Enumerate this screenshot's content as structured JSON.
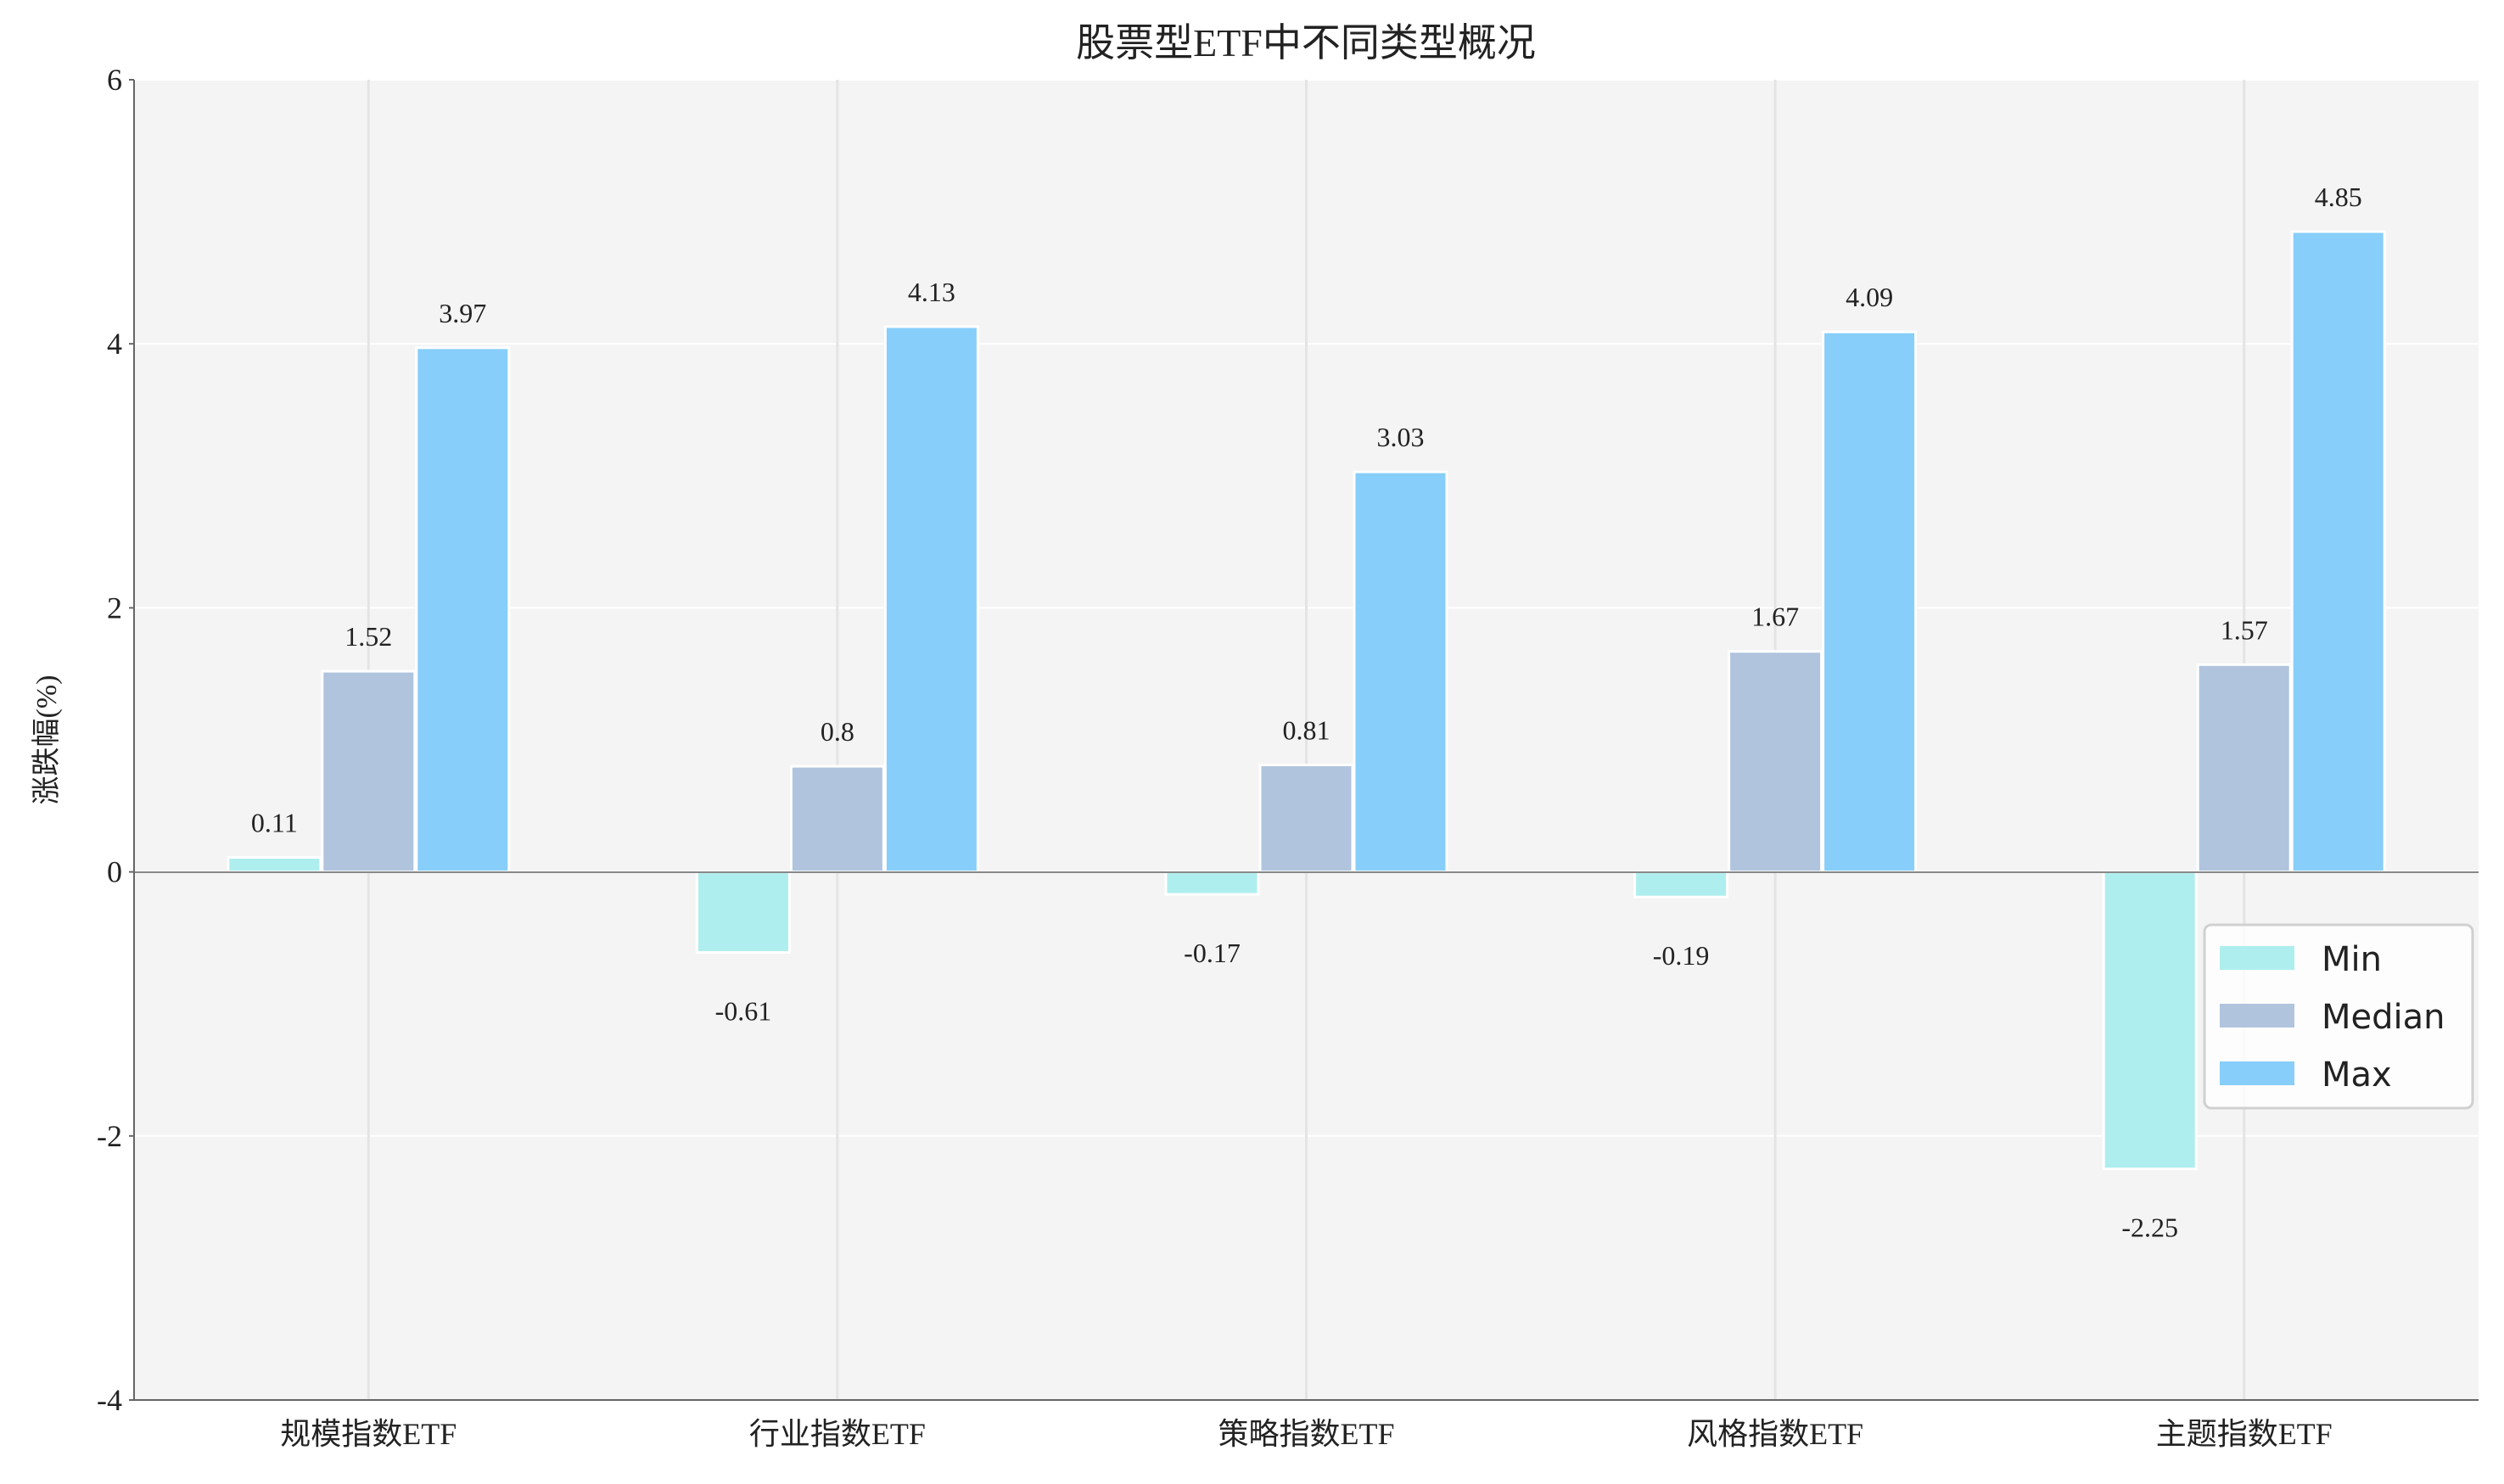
{
  "chart_data": {
    "type": "bar",
    "title": "股票型ETF中不同类型概况",
    "xlabel": "",
    "ylabel": "涨跌幅(%)",
    "categories": [
      "规模指数ETF",
      "行业指数ETF",
      "策略指数ETF",
      "风格指数ETF",
      "主题指数ETF"
    ],
    "series": [
      {
        "name": "Min",
        "values": [
          0.11,
          -0.61,
          -0.17,
          -0.19,
          -2.25
        ],
        "color": "#AFEEEE"
      },
      {
        "name": "Median",
        "values": [
          1.52,
          0.8,
          0.81,
          1.67,
          1.57
        ],
        "color": "#B0C4DE"
      },
      {
        "name": "Max",
        "values": [
          3.97,
          4.13,
          3.03,
          4.09,
          4.85
        ],
        "color": "#87CEFA"
      }
    ],
    "ylim": [
      -4,
      6
    ],
    "yticks": [
      -4,
      -2,
      0,
      2,
      4,
      6
    ],
    "grid": true,
    "legend": "top-right",
    "background": "#F4F4F4"
  }
}
